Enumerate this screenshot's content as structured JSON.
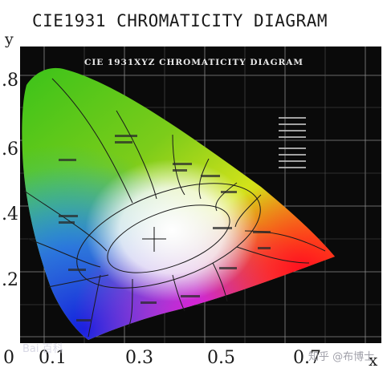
{
  "outer_title": "CIE1931 CHROMATICITY DIAGRAM",
  "inner_title": "CIE 1931XYZ CHROMATICITY DIAGRAM",
  "axes": {
    "y_letter": "y",
    "x_letter": "x",
    "y_ticks": [
      ".8",
      ".6",
      ".4",
      ".2"
    ],
    "x_ticks": [
      "0",
      "0.1",
      "0.3",
      "0.5",
      "0.7"
    ]
  },
  "watermarks": {
    "left": "Bai 百科",
    "right": "知乎 @布博士"
  },
  "colors": {
    "plot_background": "#0a0a0a",
    "grid": "#8a8a8a",
    "region_lines": "#1a1a1a",
    "white_point_region": "#ffffff"
  },
  "chart_data": {
    "type": "chromaticity-diagram",
    "title": "CIE1931 CHROMATICITY DIAGRAM",
    "xlabel": "x",
    "ylabel": "y",
    "grid": true,
    "regions": [
      "green",
      "yellow",
      "orange",
      "red",
      "pink",
      "purple",
      "blue",
      "white"
    ]
  }
}
